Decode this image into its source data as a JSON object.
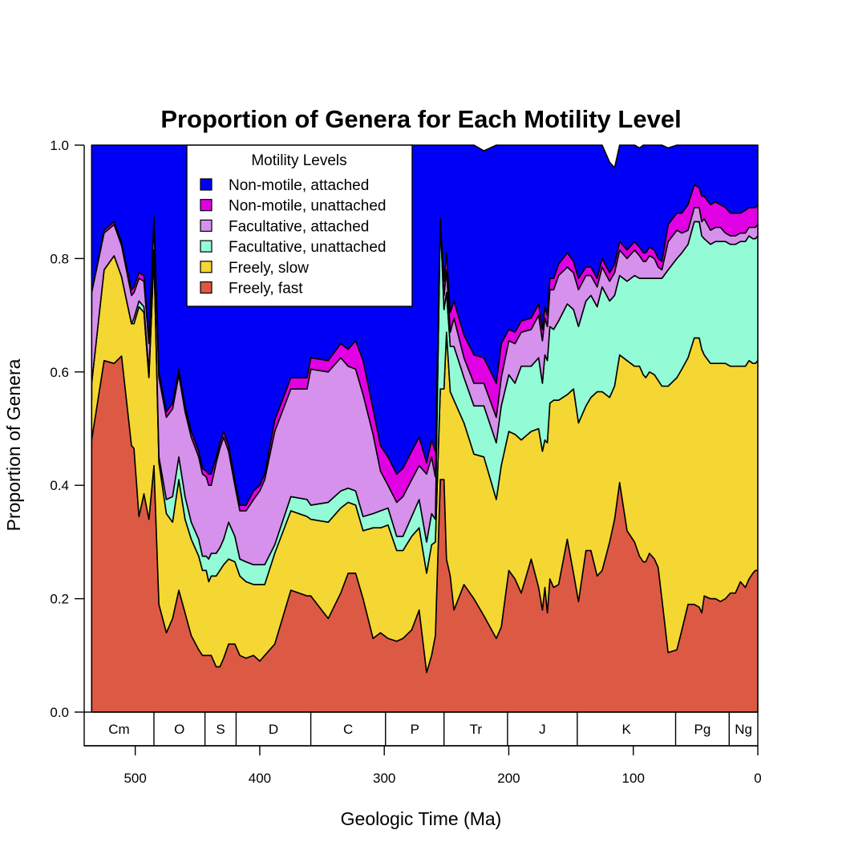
{
  "chart_data": {
    "type": "area",
    "stacked": true,
    "title": "Proportion of Genera for Each Motility Level",
    "xlabel": "Geologic Time (Ma)",
    "ylabel": "Proportion of Genera",
    "xlim": [
      541,
      0
    ],
    "ylim": [
      0,
      1
    ],
    "x_ticks": [
      500,
      400,
      300,
      200,
      100,
      0
    ],
    "y_ticks": [
      "0.0",
      "0.2",
      "0.4",
      "0.6",
      "0.8",
      "1.0"
    ],
    "legend": {
      "title": "Motility Levels",
      "position": "top-left",
      "entries": [
        "Non-motile, attached",
        "Non-motile, unattached",
        "Facultative, attached",
        "Facultative, unattached",
        "Freely, slow",
        "Freely, fast"
      ]
    },
    "periods": [
      {
        "label": "Cm",
        "start": 541,
        "end": 485
      },
      {
        "label": "O",
        "start": 485,
        "end": 444
      },
      {
        "label": "S",
        "start": 444,
        "end": 419
      },
      {
        "label": "D",
        "start": 419,
        "end": 359
      },
      {
        "label": "C",
        "start": 359,
        "end": 299
      },
      {
        "label": "P",
        "start": 299,
        "end": 252
      },
      {
        "label": "Tr",
        "start": 252,
        "end": 201
      },
      {
        "label": "J",
        "start": 201,
        "end": 145
      },
      {
        "label": "K",
        "start": 145,
        "end": 66
      },
      {
        "label": "Pg",
        "start": 66,
        "end": 23
      },
      {
        "label": "Ng",
        "start": 23,
        "end": 0
      }
    ],
    "x": [
      535,
      535,
      525,
      517,
      511,
      503,
      501,
      497,
      493,
      489,
      485,
      481,
      475,
      470,
      465,
      460,
      455,
      449,
      446,
      443,
      441,
      439,
      435,
      432,
      429,
      425,
      420,
      416,
      411,
      405,
      400,
      396,
      388,
      375,
      362,
      359,
      345,
      335,
      329,
      323,
      317,
      309,
      303,
      297,
      290,
      285,
      278,
      272,
      266,
      262,
      259,
      255,
      252,
      250,
      247,
      244,
      236,
      228,
      220,
      210,
      206,
      200,
      195,
      190,
      182,
      176,
      173,
      171,
      169,
      167,
      164,
      160,
      153,
      148,
      144,
      138,
      134,
      129,
      125,
      119,
      115,
      111,
      105,
      99,
      95,
      92,
      90,
      87,
      83,
      80,
      77,
      72,
      65,
      61,
      56,
      51,
      47,
      45,
      43,
      38,
      34,
      30,
      26,
      22,
      18,
      14,
      10,
      7,
      4,
      2,
      0
    ],
    "series": [
      {
        "name": "Freely, fast",
        "color": "#dc5a44",
        "values": [
          0.47,
          0.48,
          0.62,
          0.615,
          0.628,
          0.47,
          0.465,
          0.345,
          0.385,
          0.34,
          0.435,
          0.19,
          0.14,
          0.165,
          0.215,
          0.175,
          0.135,
          0.11,
          0.1,
          0.1,
          0.1,
          0.1,
          0.08,
          0.08,
          0.095,
          0.12,
          0.12,
          0.1,
          0.095,
          0.1,
          0.09,
          0.1,
          0.12,
          0.215,
          0.205,
          0.205,
          0.165,
          0.21,
          0.245,
          0.245,
          0.2,
          0.13,
          0.14,
          0.13,
          0.125,
          0.13,
          0.145,
          0.18,
          0.07,
          0.1,
          0.135,
          0.41,
          0.41,
          0.27,
          0.24,
          0.18,
          0.225,
          0.2,
          0.17,
          0.13,
          0.15,
          0.25,
          0.235,
          0.21,
          0.27,
          0.22,
          0.18,
          0.22,
          0.175,
          0.235,
          0.22,
          0.225,
          0.305,
          0.245,
          0.195,
          0.285,
          0.285,
          0.24,
          0.25,
          0.3,
          0.34,
          0.405,
          0.32,
          0.3,
          0.275,
          0.265,
          0.265,
          0.28,
          0.27,
          0.255,
          0.2,
          0.105,
          0.11,
          0.145,
          0.19,
          0.19,
          0.185,
          0.175,
          0.205,
          0.2,
          0.2,
          0.195,
          0.2,
          0.21,
          0.21,
          0.23,
          0.22,
          0.235,
          0.245,
          0.25,
          0.25
        ]
      },
      {
        "name": "Freely, slow",
        "color": "#f4d733",
        "values": [
          0.08,
          0.1,
          0.16,
          0.19,
          0.14,
          0.215,
          0.22,
          0.37,
          0.32,
          0.25,
          0.37,
          0.25,
          0.21,
          0.17,
          0.195,
          0.165,
          0.17,
          0.165,
          0.15,
          0.15,
          0.13,
          0.14,
          0.16,
          0.17,
          0.165,
          0.15,
          0.145,
          0.14,
          0.135,
          0.125,
          0.135,
          0.125,
          0.16,
          0.14,
          0.14,
          0.135,
          0.17,
          0.15,
          0.125,
          0.12,
          0.12,
          0.195,
          0.185,
          0.2,
          0.16,
          0.155,
          0.165,
          0.145,
          0.175,
          0.195,
          0.165,
          0.16,
          0.16,
          0.4,
          0.325,
          0.37,
          0.285,
          0.255,
          0.28,
          0.245,
          0.285,
          0.245,
          0.255,
          0.27,
          0.225,
          0.28,
          0.28,
          0.26,
          0.3,
          0.31,
          0.33,
          0.325,
          0.255,
          0.325,
          0.315,
          0.255,
          0.27,
          0.325,
          0.315,
          0.255,
          0.235,
          0.225,
          0.3,
          0.31,
          0.335,
          0.33,
          0.325,
          0.32,
          0.325,
          0.33,
          0.375,
          0.47,
          0.48,
          0.46,
          0.435,
          0.47,
          0.475,
          0.465,
          0.425,
          0.415,
          0.415,
          0.42,
          0.415,
          0.4,
          0.4,
          0.38,
          0.39,
          0.385,
          0.37,
          0.365,
          0.37
        ]
      },
      {
        "name": "Facultative, unattached",
        "color": "#93fbd6",
        "values": [
          0.0,
          0.0,
          0.0,
          0.0,
          0.0,
          0.0,
          0.01,
          0.01,
          0.01,
          0.01,
          0.01,
          0.01,
          0.025,
          0.045,
          0.04,
          0.04,
          0.03,
          0.03,
          0.025,
          0.025,
          0.04,
          0.04,
          0.04,
          0.04,
          0.045,
          0.065,
          0.045,
          0.03,
          0.035,
          0.035,
          0.035,
          0.035,
          0.015,
          0.025,
          0.03,
          0.025,
          0.035,
          0.03,
          0.025,
          0.025,
          0.025,
          0.025,
          0.03,
          0.03,
          0.025,
          0.025,
          0.035,
          0.05,
          0.055,
          0.055,
          0.04,
          0.3,
          0.14,
          0.07,
          0.08,
          0.095,
          0.08,
          0.085,
          0.09,
          0.1,
          0.105,
          0.1,
          0.09,
          0.13,
          0.115,
          0.125,
          0.12,
          0.15,
          0.145,
          0.135,
          0.125,
          0.14,
          0.16,
          0.14,
          0.17,
          0.185,
          0.18,
          0.15,
          0.185,
          0.17,
          0.16,
          0.14,
          0.14,
          0.16,
          0.155,
          0.17,
          0.175,
          0.165,
          0.17,
          0.18,
          0.19,
          0.205,
          0.21,
          0.205,
          0.2,
          0.205,
          0.205,
          0.2,
          0.205,
          0.21,
          0.215,
          0.215,
          0.215,
          0.215,
          0.215,
          0.22,
          0.22,
          0.22,
          0.22,
          0.22,
          0.22
        ]
      },
      {
        "name": "Facultative, attached",
        "color": "#d591ec",
        "values": [
          0.15,
          0.16,
          0.065,
          0.055,
          0.055,
          0.05,
          0.045,
          0.04,
          0.045,
          0.05,
          0.05,
          0.14,
          0.145,
          0.155,
          0.145,
          0.15,
          0.15,
          0.145,
          0.145,
          0.14,
          0.13,
          0.12,
          0.16,
          0.175,
          0.18,
          0.125,
          0.09,
          0.085,
          0.09,
          0.115,
          0.13,
          0.15,
          0.2,
          0.19,
          0.195,
          0.24,
          0.23,
          0.235,
          0.215,
          0.215,
          0.215,
          0.14,
          0.07,
          0.04,
          0.06,
          0.07,
          0.065,
          0.06,
          0.12,
          0.1,
          0.075,
          0.0,
          0.025,
          0.04,
          0.025,
          0.05,
          0.035,
          0.04,
          0.04,
          0.045,
          0.05,
          0.06,
          0.07,
          0.06,
          0.065,
          0.075,
          0.075,
          0.065,
          0.06,
          0.065,
          0.07,
          0.08,
          0.065,
          0.065,
          0.065,
          0.045,
          0.035,
          0.035,
          0.035,
          0.035,
          0.04,
          0.045,
          0.04,
          0.045,
          0.04,
          0.03,
          0.03,
          0.04,
          0.035,
          0.02,
          0.015,
          0.05,
          0.05,
          0.035,
          0.025,
          0.025,
          0.025,
          0.025,
          0.035,
          0.025,
          0.025,
          0.025,
          0.015,
          0.015,
          0.015,
          0.015,
          0.015,
          0.015,
          0.02,
          0.02,
          0.02
        ]
      },
      {
        "name": "Non-motile, unattached",
        "color": "#e100e3",
        "values": [
          0.0,
          0.0,
          0.005,
          0.005,
          0.005,
          0.01,
          0.01,
          0.01,
          0.01,
          0.01,
          0.01,
          0.01,
          0.01,
          0.01,
          0.01,
          0.01,
          0.01,
          0.01,
          0.01,
          0.01,
          0.02,
          0.02,
          0.01,
          0.01,
          0.01,
          0.01,
          0.01,
          0.01,
          0.01,
          0.015,
          0.01,
          0.01,
          0.02,
          0.02,
          0.02,
          0.02,
          0.02,
          0.025,
          0.03,
          0.05,
          0.06,
          0.045,
          0.045,
          0.05,
          0.05,
          0.05,
          0.05,
          0.05,
          0.02,
          0.03,
          0.045,
          0.0,
          0.025,
          0.03,
          0.035,
          0.03,
          0.04,
          0.05,
          0.045,
          0.06,
          0.06,
          0.02,
          0.02,
          0.02,
          0.02,
          0.02,
          0.02,
          0.02,
          0.02,
          0.02,
          0.02,
          0.02,
          0.025,
          0.02,
          0.02,
          0.015,
          0.015,
          0.015,
          0.015,
          0.015,
          0.015,
          0.015,
          0.015,
          0.015,
          0.015,
          0.015,
          0.015,
          0.015,
          0.015,
          0.015,
          0.015,
          0.03,
          0.03,
          0.035,
          0.045,
          0.04,
          0.035,
          0.045,
          0.04,
          0.045,
          0.045,
          0.04,
          0.045,
          0.04,
          0.04,
          0.035,
          0.04,
          0.035,
          0.035,
          0.035,
          0.035
        ]
      },
      {
        "name": "Non-motile, attached",
        "color": "#0000f6",
        "values": [
          0.3,
          0.26,
          0.15,
          0.135,
          0.172,
          0.255,
          0.25,
          0.225,
          0.23,
          0.34,
          0.125,
          0.4,
          0.47,
          0.455,
          0.395,
          0.46,
          0.505,
          0.54,
          0.57,
          0.575,
          0.58,
          0.58,
          0.55,
          0.525,
          0.505,
          0.53,
          0.59,
          0.635,
          0.635,
          0.61,
          0.6,
          0.58,
          0.485,
          0.41,
          0.41,
          0.375,
          0.38,
          0.35,
          0.36,
          0.345,
          0.38,
          0.465,
          0.53,
          0.55,
          0.58,
          0.57,
          0.54,
          0.515,
          0.56,
          0.52,
          0.54,
          0.13,
          0.24,
          0.19,
          0.295,
          0.275,
          0.335,
          0.37,
          0.365,
          0.42,
          0.35,
          0.325,
          0.33,
          0.31,
          0.305,
          0.28,
          0.325,
          0.285,
          0.3,
          0.235,
          0.235,
          0.21,
          0.19,
          0.205,
          0.235,
          0.215,
          0.215,
          0.235,
          0.2,
          0.195,
          0.17,
          0.17,
          0.185,
          0.17,
          0.175,
          0.19,
          0.19,
          0.18,
          0.185,
          0.2,
          0.205,
          0.135,
          0.12,
          0.12,
          0.105,
          0.07,
          0.075,
          0.09,
          0.09,
          0.105,
          0.1,
          0.105,
          0.11,
          0.12,
          0.12,
          0.12,
          0.115,
          0.11,
          0.11,
          0.11,
          0.105
        ]
      }
    ]
  }
}
